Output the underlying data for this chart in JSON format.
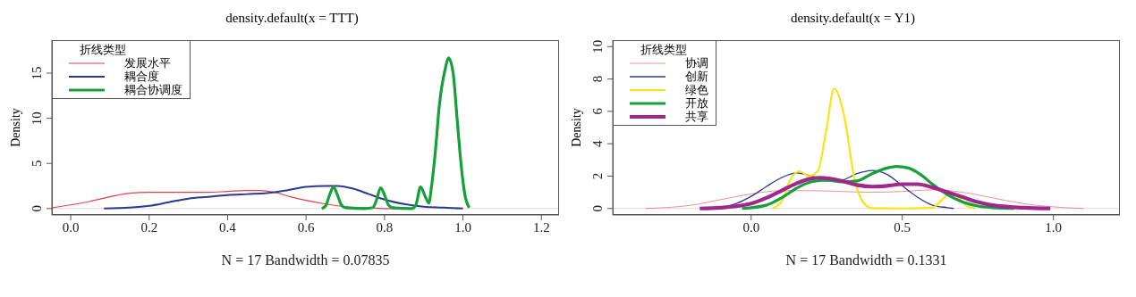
{
  "chart_data": [
    {
      "type": "line",
      "title": "density.default(x = TTT)",
      "xlabel": "N = 17   Bandwidth = 0.07835",
      "ylabel": "Density",
      "legend_title": "折线类型",
      "legend": "top left",
      "grid": false,
      "marker": "none",
      "line_style": "solid",
      "xlim": [
        -0.048,
        1.245
      ],
      "ylim": [
        -0.71,
        18.66
      ],
      "xticks": [
        {
          "value": 0,
          "label": "0.0"
        },
        {
          "value": 0.2,
          "label": "0.2"
        },
        {
          "value": 0.4,
          "label": "0.4"
        },
        {
          "value": 0.6,
          "label": "0.6"
        },
        {
          "value": 0.8,
          "label": "0.8"
        },
        {
          "value": 1,
          "label": "1.0"
        },
        {
          "value": 1.2,
          "label": "1.2"
        }
      ],
      "yticks": [
        0,
        5,
        10,
        15
      ],
      "ref_lines": [
        {
          "axis": "y",
          "value": 0,
          "color": "#d9d9d9"
        }
      ],
      "series": [
        {
          "name": "发展水平",
          "color": "#e0404a",
          "x": [
            -0.048,
            0,
            0.05,
            0.1,
            0.15,
            0.2,
            0.25,
            0.3,
            0.35,
            0.4,
            0.45,
            0.48,
            0.52,
            0.56,
            0.6,
            0.65,
            0.7,
            0.75,
            0.8,
            0.85
          ],
          "values": [
            0.1,
            0.4,
            0.8,
            1.3,
            1.7,
            1.8,
            1.8,
            1.8,
            1.8,
            1.9,
            2.0,
            2.0,
            1.8,
            1.3,
            0.9,
            0.5,
            0.2,
            0.1,
            0,
            0
          ]
        },
        {
          "name": "耦合度",
          "color": "#2b3990",
          "x": [
            0.085,
            0.15,
            0.2,
            0.25,
            0.3,
            0.35,
            0.4,
            0.45,
            0.5,
            0.55,
            0.6,
            0.65,
            0.68,
            0.72,
            0.76,
            0.8,
            0.85,
            0.9,
            0.95,
            1.0
          ],
          "values": [
            0,
            0.1,
            0.3,
            0.7,
            1.1,
            1.3,
            1.5,
            1.6,
            1.7,
            2.0,
            2.4,
            2.5,
            2.5,
            2.2,
            1.6,
            1.0,
            0.5,
            0.2,
            0.1,
            0
          ]
        },
        {
          "name": "耦合协调度",
          "color": "#16a03c",
          "x": [
            0.64,
            0.65,
            0.66,
            0.67,
            0.68,
            0.69,
            0.7,
            0.75,
            0.77,
            0.78,
            0.79,
            0.8,
            0.81,
            0.82,
            0.87,
            0.88,
            0.892,
            0.905,
            0.913,
            0.92,
            0.93,
            0.94,
            0.955,
            0.963,
            0.975,
            0.985,
            0.995,
            1.005,
            1.016
          ],
          "values": [
            0,
            0.3,
            1.5,
            2.4,
            1.5,
            0.4,
            0.1,
            0,
            0.1,
            1.0,
            2.3,
            1.5,
            0.4,
            0.1,
            0,
            0.4,
            2.4,
            1.2,
            0.6,
            2.5,
            6.5,
            11.5,
            15.5,
            16.7,
            15,
            10,
            5,
            1.5,
            0.1
          ]
        }
      ]
    },
    {
      "type": "line",
      "title": "density.default(x = Y1)",
      "xlabel": "N = 17   Bandwidth = 0.1331",
      "ylabel": "Density",
      "legend_title": "折线类型",
      "legend": "top left",
      "grid": false,
      "marker": "none",
      "line_style": "solid",
      "xlim": [
        -0.458,
        1.22
      ],
      "ylim": [
        -0.4,
        10.4
      ],
      "xticks": [
        {
          "value": 0,
          "label": "0.0"
        },
        {
          "value": 0.5,
          "label": "0.5"
        },
        {
          "value": 1,
          "label": "1.0"
        }
      ],
      "yticks": [
        0,
        2,
        4,
        6,
        8,
        10
      ],
      "ref_lines": [
        {
          "axis": "y",
          "value": 0,
          "color": "#d9d9d9"
        }
      ],
      "series": [
        {
          "name": "协调",
          "color": "#e8737a",
          "x": [
            -0.35,
            -0.2,
            -0.1,
            0,
            0.1,
            0.2,
            0.3,
            0.4,
            0.5,
            0.6,
            0.7,
            0.8,
            0.9,
            1.0,
            1.1
          ],
          "values": [
            0,
            0.2,
            0.55,
            0.9,
            1.1,
            1.1,
            1.05,
            1.0,
            1.05,
            1.15,
            1.0,
            0.65,
            0.3,
            0.1,
            0
          ]
        },
        {
          "name": "创新",
          "color": "#2b3990",
          "x": [
            -0.13,
            -0.05,
            0,
            0.05,
            0.1,
            0.15,
            0.2,
            0.25,
            0.3,
            0.35,
            0.4,
            0.45,
            0.5,
            0.55,
            0.6,
            0.65,
            0.67
          ],
          "values": [
            0,
            0.3,
            0.75,
            1.35,
            1.9,
            2.2,
            2.0,
            1.7,
            1.75,
            2.15,
            2.35,
            2.1,
            1.4,
            0.7,
            0.2,
            0.05,
            0
          ]
        },
        {
          "name": "绿色",
          "color": "#f5e614",
          "x": [
            0.07,
            0.1,
            0.13,
            0.16,
            0.19,
            0.22,
            0.25,
            0.274,
            0.31,
            0.34,
            0.37,
            0.4,
            0.5,
            0.6,
            0.63,
            0.66,
            0.68,
            0.71,
            0.74
          ],
          "values": [
            0,
            0.4,
            1.8,
            2.3,
            2.0,
            2.3,
            5.0,
            7.4,
            5.5,
            2.0,
            0.4,
            0.02,
            0,
            0.05,
            0.5,
            1.0,
            0.8,
            0.2,
            0
          ]
        },
        {
          "name": "开放",
          "color": "#16a03c",
          "x": [
            -0.03,
            0.05,
            0.1,
            0.15,
            0.2,
            0.25,
            0.3,
            0.35,
            0.4,
            0.45,
            0.48,
            0.52,
            0.56,
            0.6,
            0.65,
            0.7,
            0.75,
            0.8,
            0.87
          ],
          "values": [
            0,
            0.2,
            0.65,
            1.25,
            1.65,
            1.75,
            1.65,
            1.7,
            2.15,
            2.5,
            2.6,
            2.5,
            2.1,
            1.5,
            0.85,
            0.4,
            0.15,
            0.05,
            0
          ]
        },
        {
          "name": "共享",
          "color": "#a0288c",
          "x": [
            -0.17,
            -0.1,
            0,
            0.05,
            0.1,
            0.15,
            0.2,
            0.23,
            0.3,
            0.35,
            0.4,
            0.45,
            0.5,
            0.55,
            0.6,
            0.65,
            0.7,
            0.75,
            0.8,
            0.9,
            0.99
          ],
          "values": [
            0,
            0.05,
            0.3,
            0.65,
            1.1,
            1.55,
            1.85,
            1.9,
            1.7,
            1.45,
            1.35,
            1.4,
            1.5,
            1.5,
            1.3,
            1.0,
            0.7,
            0.4,
            0.2,
            0.05,
            0
          ]
        }
      ]
    }
  ]
}
